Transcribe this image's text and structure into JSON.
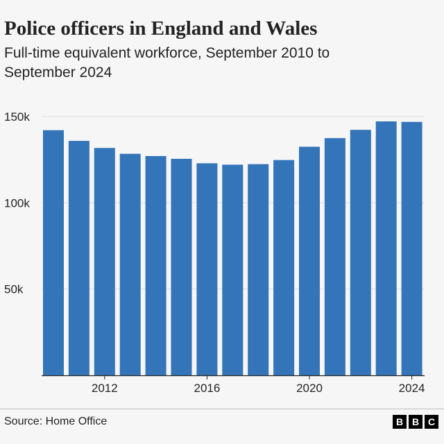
{
  "chart_data": {
    "type": "bar",
    "title": "Police officers in England and Wales",
    "subtitle": "Full-time equivalent workforce, September 2010 to September 2024",
    "categories": [
      "2010",
      "2011",
      "2012",
      "2013",
      "2014",
      "2015",
      "2016",
      "2017",
      "2018",
      "2019",
      "2020",
      "2021",
      "2022",
      "2023",
      "2024"
    ],
    "values": [
      142100,
      135900,
      131800,
      128400,
      127100,
      125500,
      122900,
      122100,
      122400,
      124800,
      132500,
      137500,
      142300,
      147200,
      146900
    ],
    "xticks": [
      2012,
      2016,
      2020,
      2024
    ],
    "xtick_labels": [
      "2012",
      "2016",
      "2020",
      "2024"
    ],
    "yticks": [
      50000,
      100000,
      150000
    ],
    "ytick_labels": [
      "50k",
      "100k",
      "150k"
    ],
    "ylim": [
      0,
      150000
    ],
    "xlabel": "",
    "ylabel": "",
    "grid": true,
    "bar_color": "#3375b8"
  },
  "footer": {
    "source": "Source: Home Office",
    "logo_letters": [
      "B",
      "B",
      "C"
    ]
  }
}
